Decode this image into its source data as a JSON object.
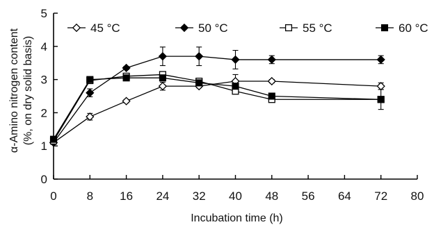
{
  "chart_data": {
    "type": "line",
    "xlabel": "Incubation time (h)",
    "ylabel_lines": [
      "α-Amino nitrogen content",
      "(%, on dry solid basis)"
    ],
    "xlim": [
      0,
      80
    ],
    "ylim": [
      0,
      5
    ],
    "x_ticks": [
      0,
      8,
      16,
      24,
      32,
      40,
      48,
      56,
      64,
      72,
      80
    ],
    "y_ticks": [
      0,
      1,
      2,
      3,
      4,
      5
    ],
    "grid": false,
    "legend_position": "top",
    "series": [
      {
        "name": "45 °C",
        "marker": "open-diamond",
        "x": [
          0,
          8,
          16,
          24,
          32,
          40,
          48,
          72
        ],
        "y": [
          1.1,
          1.88,
          2.35,
          2.8,
          2.8,
          2.95,
          2.95,
          2.8
        ],
        "err": [
          0.05,
          0.1,
          0.05,
          0.12,
          0.05,
          0.2,
          0.05,
          0.1
        ]
      },
      {
        "name": "50 °C",
        "marker": "filled-diamond",
        "x": [
          0,
          8,
          16,
          24,
          32,
          40,
          48,
          72
        ],
        "y": [
          1.1,
          2.6,
          3.35,
          3.7,
          3.7,
          3.6,
          3.6,
          3.6
        ],
        "err": [
          0.05,
          0.12,
          0.05,
          0.28,
          0.28,
          0.28,
          0.12,
          0.12
        ]
      },
      {
        "name": "55 °C",
        "marker": "open-square",
        "x": [
          0,
          8,
          16,
          24,
          32,
          40,
          48,
          72
        ],
        "y": [
          1.15,
          2.97,
          3.1,
          3.15,
          2.95,
          2.65,
          2.4,
          2.4
        ],
        "err": [
          0.05,
          0.05,
          0.05,
          0.05,
          0.05,
          0.05,
          0.05,
          0.05
        ]
      },
      {
        "name": "60 °C",
        "marker": "filled-square",
        "x": [
          0,
          8,
          16,
          24,
          32,
          40,
          48,
          72
        ],
        "y": [
          1.2,
          3.0,
          3.05,
          3.05,
          2.9,
          2.8,
          2.5,
          2.4
        ],
        "err": [
          0.05,
          0.05,
          0.05,
          0.05,
          0.05,
          0.05,
          0.05,
          0.3
        ]
      }
    ]
  }
}
